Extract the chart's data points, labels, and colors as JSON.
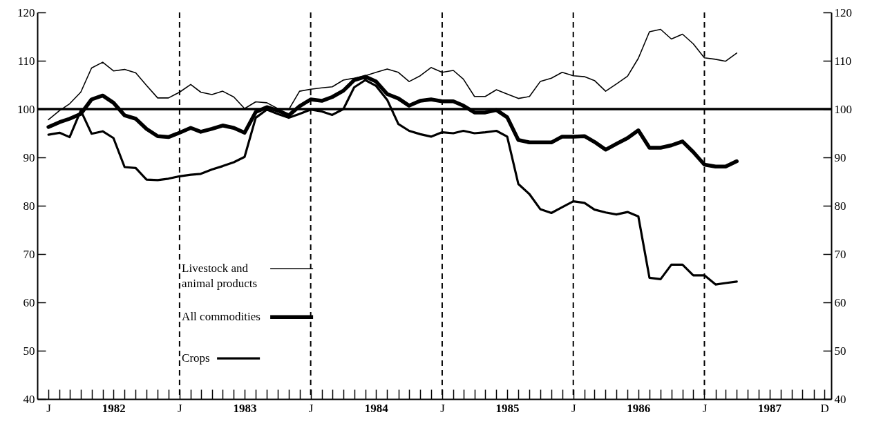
{
  "chart_data": {
    "type": "line",
    "x": [
      "1982-01",
      "1982-02",
      "1982-03",
      "1982-04",
      "1982-05",
      "1982-06",
      "1982-07",
      "1982-08",
      "1982-09",
      "1982-10",
      "1982-11",
      "1982-12",
      "1983-01",
      "1983-02",
      "1983-03",
      "1983-04",
      "1983-05",
      "1983-06",
      "1983-07",
      "1983-08",
      "1983-09",
      "1983-10",
      "1983-11",
      "1983-12",
      "1984-01",
      "1984-02",
      "1984-03",
      "1984-04",
      "1984-05",
      "1984-06",
      "1984-07",
      "1984-08",
      "1984-09",
      "1984-10",
      "1984-11",
      "1984-12",
      "1985-01",
      "1985-02",
      "1985-03",
      "1985-04",
      "1985-05",
      "1985-06",
      "1985-07",
      "1985-08",
      "1985-09",
      "1985-10",
      "1985-11",
      "1985-12",
      "1986-01",
      "1986-02",
      "1986-03",
      "1986-04",
      "1986-05",
      "1986-06",
      "1986-07",
      "1986-08",
      "1986-09",
      "1986-10",
      "1986-11",
      "1986-12",
      "1987-01",
      "1987-02",
      "1987-03",
      "1987-04"
    ],
    "series": [
      {
        "name": "Livestock and animal products",
        "color": "#000000",
        "values": [
          97.8,
          99.7,
          101.1,
          103.5,
          108.5,
          109.7,
          107.9,
          108.2,
          107.5,
          104.9,
          102.3,
          102.3,
          103.5,
          105.1,
          103.5,
          103,
          103.7,
          102.5,
          100.1,
          101.5,
          101.3,
          100.1,
          99.9,
          103.7,
          104.1,
          104.4,
          104.6,
          106,
          106.4,
          106.9,
          107.6,
          108.3,
          107.6,
          105.7,
          106.9,
          108.6,
          107.6,
          108,
          106.2,
          102.6,
          102.6,
          104,
          103.1,
          102.2,
          102.6,
          105.7,
          106.4,
          107.6,
          106.9,
          106.7,
          105.9,
          103.7,
          105.2,
          106.8,
          110.5,
          116,
          116.5,
          114.5,
          115.5,
          113.5,
          110.6,
          110.3,
          109.9,
          111.6
        ]
      },
      {
        "name": "All commodities",
        "color": "#000000",
        "values": [
          96.3,
          97.3,
          98,
          99,
          102,
          102.8,
          101.3,
          98.7,
          98,
          95.9,
          94.4,
          94.2,
          95.1,
          96.1,
          95.3,
          95.9,
          96.6,
          96.1,
          95.1,
          99.4,
          100.4,
          99.7,
          98.7,
          100.6,
          102,
          101.7,
          102.5,
          103.8,
          106,
          106.7,
          105.7,
          103.1,
          102.2,
          100.7,
          101.7,
          102,
          101.6,
          101.6,
          100.7,
          99.3,
          99.3,
          99.8,
          98.3,
          93.6,
          93.1,
          93.1,
          93.1,
          94.3,
          94.3,
          94.4,
          93.2,
          91.6,
          92.8,
          94,
          95.6,
          92,
          92,
          92.5,
          93.3,
          91.1,
          88.5,
          88.1,
          88.1,
          89.2
        ]
      },
      {
        "name": "Crops",
        "color": "#000000",
        "values": [
          94.7,
          95.1,
          94.2,
          99.7,
          94.9,
          95.4,
          94,
          88,
          87.8,
          85.4,
          85.3,
          85.6,
          86.1,
          86.4,
          86.6,
          87.5,
          88.2,
          89,
          90.1,
          98.2,
          99.9,
          99,
          98.2,
          99,
          99.9,
          99.5,
          98.8,
          100,
          104.5,
          106,
          104.8,
          101.9,
          96.9,
          95.5,
          94.8,
          94.3,
          95.2,
          95,
          95.5,
          95,
          95.2,
          95.5,
          94.3,
          84.5,
          82.4,
          79.3,
          78.5,
          79.7,
          80.9,
          80.6,
          79.2,
          78.6,
          78.2,
          78.7,
          77.8,
          65.1,
          64.8,
          67.8,
          67.8,
          65.6,
          65.6,
          63.7,
          64,
          64.3
        ]
      }
    ],
    "xlim": [
      "1981-12-01",
      "1987-12-20"
    ],
    "xticks": [
      {
        "value": "1982-01",
        "label": "J"
      },
      {
        "value": "1982-02",
        "label": null
      },
      {
        "value": "1982-03",
        "label": null
      },
      {
        "value": "1982-04",
        "label": null
      },
      {
        "value": "1982-05",
        "label": null
      },
      {
        "value": "1982-06",
        "label": null
      },
      {
        "value": "1982-07",
        "label": "1982"
      },
      {
        "value": "1982-08",
        "label": null
      },
      {
        "value": "1982-09",
        "label": null
      },
      {
        "value": "1982-10",
        "label": null
      },
      {
        "value": "1982-11",
        "label": null
      },
      {
        "value": "1982-12",
        "label": null
      },
      {
        "value": "1983-01",
        "label": "J"
      },
      {
        "value": "1983-02",
        "label": null
      },
      {
        "value": "1983-03",
        "label": null
      },
      {
        "value": "1983-04",
        "label": null
      },
      {
        "value": "1983-05",
        "label": null
      },
      {
        "value": "1983-06",
        "label": null
      },
      {
        "value": "1983-07",
        "label": "1983"
      },
      {
        "value": "1983-08",
        "label": null
      },
      {
        "value": "1983-09",
        "label": null
      },
      {
        "value": "1983-10",
        "label": null
      },
      {
        "value": "1983-11",
        "label": null
      },
      {
        "value": "1983-12",
        "label": null
      },
      {
        "value": "1984-01",
        "label": "J"
      },
      {
        "value": "1984-02",
        "label": null
      },
      {
        "value": "1984-03",
        "label": null
      },
      {
        "value": "1984-04",
        "label": null
      },
      {
        "value": "1984-05",
        "label": null
      },
      {
        "value": "1984-06",
        "label": null
      },
      {
        "value": "1984-07",
        "label": "1984"
      },
      {
        "value": "1984-08",
        "label": null
      },
      {
        "value": "1984-09",
        "label": null
      },
      {
        "value": "1984-10",
        "label": null
      },
      {
        "value": "1984-11",
        "label": null
      },
      {
        "value": "1984-12",
        "label": null
      },
      {
        "value": "1985-01",
        "label": "J"
      },
      {
        "value": "1985-02",
        "label": null
      },
      {
        "value": "1985-03",
        "label": null
      },
      {
        "value": "1985-04",
        "label": null
      },
      {
        "value": "1985-05",
        "label": null
      },
      {
        "value": "1985-06",
        "label": null
      },
      {
        "value": "1985-07",
        "label": "1985"
      },
      {
        "value": "1985-08",
        "label": null
      },
      {
        "value": "1985-09",
        "label": null
      },
      {
        "value": "1985-10",
        "label": null
      },
      {
        "value": "1985-11",
        "label": null
      },
      {
        "value": "1985-12",
        "label": null
      },
      {
        "value": "1986-01",
        "label": "J"
      },
      {
        "value": "1986-02",
        "label": null
      },
      {
        "value": "1986-03",
        "label": null
      },
      {
        "value": "1986-04",
        "label": null
      },
      {
        "value": "1986-05",
        "label": null
      },
      {
        "value": "1986-06",
        "label": null
      },
      {
        "value": "1986-07",
        "label": "1986"
      },
      {
        "value": "1986-08",
        "label": null
      },
      {
        "value": "1986-09",
        "label": null
      },
      {
        "value": "1986-10",
        "label": null
      },
      {
        "value": "1986-11",
        "label": null
      },
      {
        "value": "1986-12",
        "label": null
      },
      {
        "value": "1987-01",
        "label": "J"
      },
      {
        "value": "1987-02",
        "label": null
      },
      {
        "value": "1987-03",
        "label": null
      },
      {
        "value": "1987-04",
        "label": null
      },
      {
        "value": "1987-05",
        "label": null
      },
      {
        "value": "1987-06",
        "label": null
      },
      {
        "value": "1987-07",
        "label": "1987"
      },
      {
        "value": "1987-08",
        "label": null
      },
      {
        "value": "1987-09",
        "label": null
      },
      {
        "value": "1987-10",
        "label": null
      },
      {
        "value": "1987-11",
        "label": null
      },
      {
        "value": "1987-12",
        "label": "D"
      }
    ],
    "ylim": [
      40,
      120
    ],
    "yticks": [
      40,
      50,
      60,
      70,
      80,
      90,
      100,
      110,
      120
    ],
    "y2lim": [
      40,
      120
    ],
    "y2ticks": [
      40,
      50,
      60,
      70,
      80,
      90,
      100,
      110,
      120
    ],
    "ref_lines": [
      {
        "axis": "y2",
        "value": 100,
        "line_style": "solid",
        "color": "#000000"
      },
      {
        "axis": "x",
        "value": "1983-01",
        "line_style": "dashed",
        "color": "#000000"
      },
      {
        "axis": "x",
        "value": "1984-01",
        "line_style": "dashed",
        "color": "#000000"
      },
      {
        "axis": "x",
        "value": "1985-01",
        "line_style": "dashed",
        "color": "#000000"
      },
      {
        "axis": "x",
        "value": "1986-01",
        "line_style": "dashed",
        "color": "#000000"
      },
      {
        "axis": "x",
        "value": "1987-01",
        "line_style": "dashed",
        "color": "#000000"
      }
    ],
    "legend": "bottom left"
  }
}
